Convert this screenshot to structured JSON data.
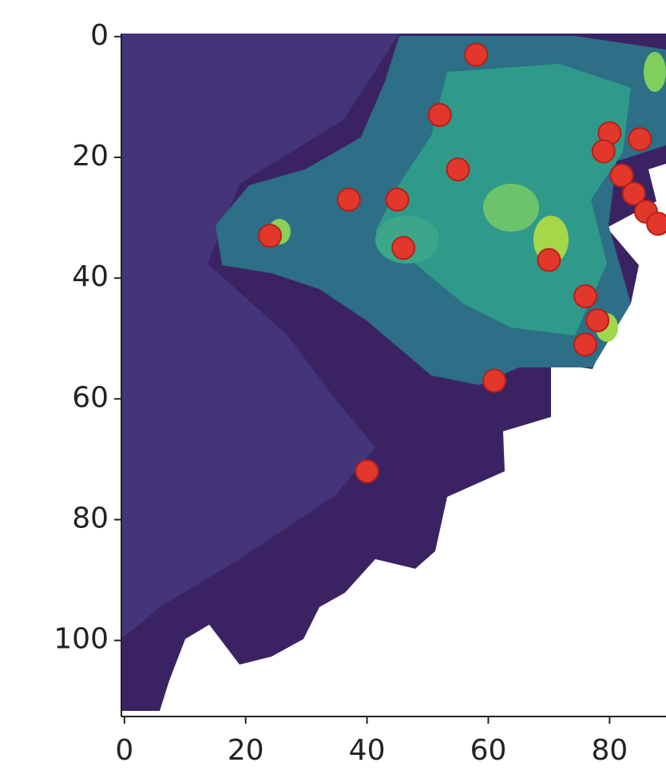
{
  "chart_data": {
    "type": "scatter",
    "x": [
      58,
      52,
      55,
      45,
      37,
      24,
      46,
      70,
      80,
      85,
      79,
      82,
      84,
      86,
      88,
      76,
      78,
      76,
      61,
      40
    ],
    "values": [
      3,
      13,
      22,
      27,
      27,
      33,
      35,
      37,
      16,
      17,
      19,
      23,
      26,
      29,
      31,
      43,
      47,
      51,
      57,
      72
    ],
    "color": "#e2382c",
    "xlim": [
      -0.5,
      89.3
    ],
    "xticks": [
      0,
      20,
      40,
      60,
      80
    ],
    "ylim": [
      112.6,
      -0.5
    ],
    "yticks": [
      0,
      20,
      40,
      60,
      80,
      100
    ],
    "grid": false
  }
}
